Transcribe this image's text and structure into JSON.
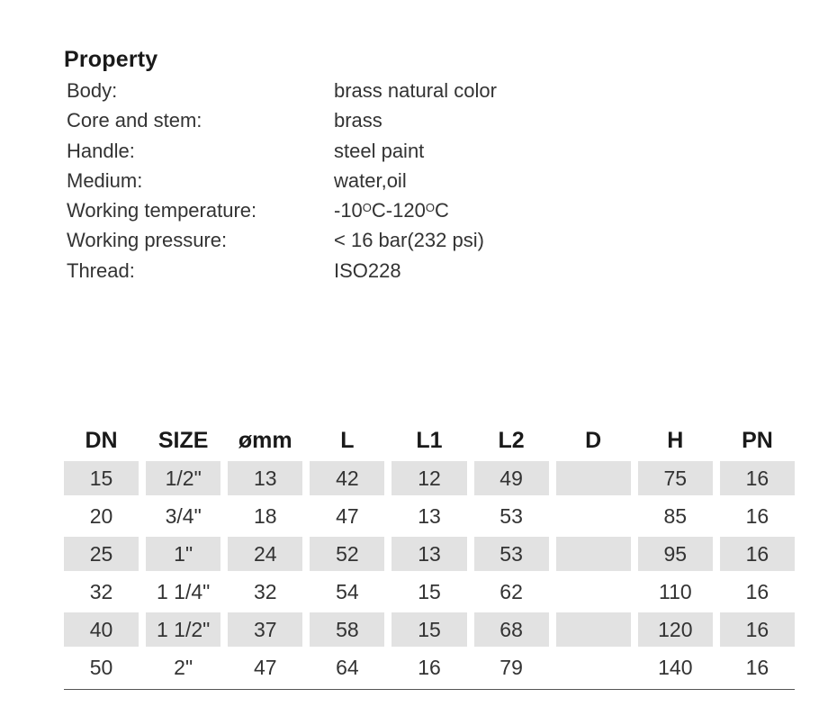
{
  "heading": "Property",
  "properties": [
    {
      "label": "Body:",
      "value": "brass natural color"
    },
    {
      "label": "Core and stem:",
      "value": "brass"
    },
    {
      "label": "Handle:",
      "value": "steel paint"
    },
    {
      "label": "Medium:",
      "value": "water,oil"
    },
    {
      "label": "Working temperature:",
      "value_parts": [
        "-10",
        "O",
        "C-120",
        "O",
        "C"
      ]
    },
    {
      "label": "Working pressure:",
      "value": "< 16 bar(232 psi)"
    },
    {
      "label": "Thread:",
      "value": "ISO228"
    }
  ],
  "table": {
    "headers": [
      "DN",
      "SIZE",
      "ømm",
      "L",
      "L1",
      "L2",
      "D",
      "H",
      "PN"
    ],
    "rows": [
      [
        "15",
        "1/2\"",
        "13",
        "42",
        "12",
        "49",
        "",
        "75",
        "16"
      ],
      [
        "20",
        "3/4\"",
        "18",
        "47",
        "13",
        "53",
        "",
        "85",
        "16"
      ],
      [
        "25",
        "1\"",
        "24",
        "52",
        "13",
        "53",
        "",
        "95",
        "16"
      ],
      [
        "32",
        "1 1/4\"",
        "32",
        "54",
        "15",
        "62",
        "",
        "110",
        "16"
      ],
      [
        "40",
        "1 1/2\"",
        "37",
        "58",
        "15",
        "68",
        "",
        "120",
        "16"
      ],
      [
        "50",
        "2\"",
        "47",
        "64",
        "16",
        "79",
        "",
        "140",
        "16"
      ]
    ]
  },
  "colors": {
    "shade": "#e2e2e2",
    "text": "#333333"
  }
}
